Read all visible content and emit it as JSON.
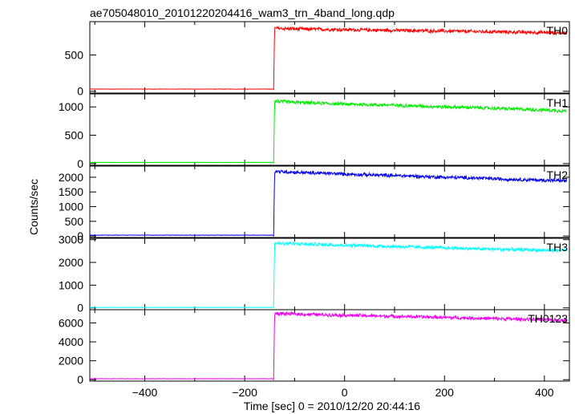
{
  "chart_data": {
    "type": "line",
    "title": "ae705048010_20101220204416_wam3_trn_4band_long.qdp",
    "xlabel": "Time [sec] 0 = 2010/12/20 20:44:16",
    "ylabel": "Counts/sec",
    "xlim": [
      -510,
      450
    ],
    "xticks": [
      -400,
      -200,
      0,
      200,
      400
    ],
    "grid": false,
    "onset_time": -142,
    "panels": [
      {
        "name": "TH0",
        "color": "#ff0000",
        "ylim": [
          -25,
          960
        ],
        "yticks": [
          0,
          500
        ],
        "series": {
          "x": [
            -510,
            -142,
            -140,
            -100,
            -50,
            0,
            50,
            100,
            150,
            200,
            250,
            300,
            350,
            400,
            445
          ],
          "values": [
            30,
            30,
            870,
            860,
            855,
            850,
            845,
            840,
            835,
            830,
            825,
            820,
            815,
            810,
            805
          ]
        }
      },
      {
        "name": "TH1",
        "color": "#00ee00",
        "ylim": [
          -30,
          1230
        ],
        "yticks": [
          0,
          500,
          1000
        ],
        "series": {
          "x": [
            -510,
            -142,
            -140,
            -100,
            -50,
            0,
            50,
            100,
            150,
            200,
            250,
            300,
            350,
            400,
            445
          ],
          "values": [
            20,
            20,
            1100,
            1080,
            1065,
            1050,
            1040,
            1030,
            1015,
            1000,
            990,
            975,
            960,
            945,
            930
          ]
        }
      },
      {
        "name": "TH2",
        "color": "#0000ee",
        "ylim": [
          -50,
          2380
        ],
        "yticks": [
          0,
          500,
          1000,
          1500,
          2000
        ],
        "series": {
          "x": [
            -510,
            -142,
            -140,
            -100,
            -50,
            0,
            50,
            100,
            150,
            200,
            250,
            300,
            350,
            400,
            445
          ],
          "values": [
            30,
            30,
            2200,
            2170,
            2140,
            2110,
            2080,
            2060,
            2030,
            2000,
            1980,
            1950,
            1920,
            1900,
            1880
          ]
        }
      },
      {
        "name": "TH3",
        "color": "#00ffff",
        "ylim": [
          -80,
          3060
        ],
        "yticks": [
          0,
          1000,
          2000,
          3000
        ],
        "series": {
          "x": [
            -510,
            -142,
            -140,
            -100,
            -50,
            0,
            50,
            100,
            150,
            200,
            250,
            300,
            350,
            400,
            445
          ],
          "values": [
            20,
            20,
            2850,
            2820,
            2790,
            2760,
            2730,
            2700,
            2670,
            2640,
            2610,
            2580,
            2560,
            2540,
            2520
          ]
        }
      },
      {
        "name": "TH0123",
        "color": "#ee00ee",
        "ylim": [
          -150,
          7400
        ],
        "yticks": [
          0,
          2000,
          4000,
          6000
        ],
        "series": {
          "x": [
            -510,
            -142,
            -140,
            -100,
            -50,
            0,
            50,
            100,
            150,
            200,
            250,
            300,
            350,
            400,
            445
          ],
          "values": [
            100,
            100,
            7000,
            6950,
            6880,
            6820,
            6760,
            6700,
            6640,
            6580,
            6520,
            6460,
            6400,
            6340,
            6280
          ]
        }
      }
    ]
  }
}
